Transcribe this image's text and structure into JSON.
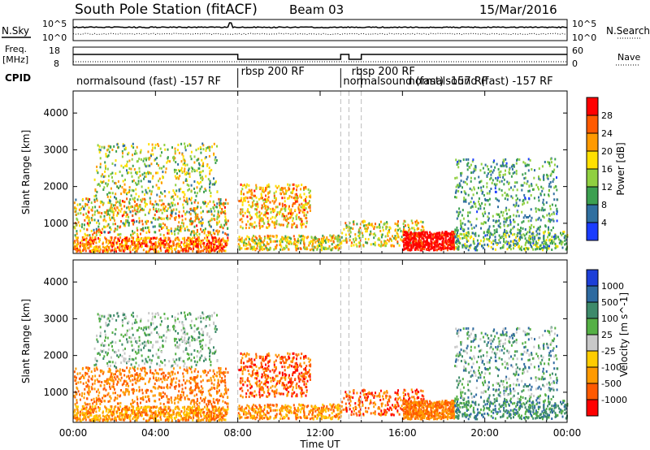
{
  "header": {
    "station": "South Pole Station (fitACF)",
    "beam": "Beam 03",
    "date": "15/Mar/2016"
  },
  "panels": {
    "nsky_label": "N.Sky",
    "nsky_top": "10^5",
    "nsky_bottom": "10^0",
    "nsearch_label": "N.Search",
    "nsearch_top": "10^5",
    "nsearch_bottom": "10^0",
    "freq_label_1": "Freq.",
    "freq_label_2": "[MHz]",
    "freq_top": "18",
    "freq_bottom": "8",
    "nave_label": "Nave",
    "nave_top": "60",
    "nave_bottom": "0",
    "cpid_label": "CPID",
    "cpid_segments": [
      "normalsound (fast) -157 RF",
      "rbsp 200 RF",
      "normalsound (fast) -157 RF",
      "rbsp 200 RF",
      "normalsound (fast) -157 RF"
    ]
  },
  "power_colorbar": {
    "label": "Power [dB]",
    "ticks": [
      "28",
      "24",
      "20",
      "16",
      "12",
      "8",
      "4"
    ],
    "colors": [
      "#ff0000",
      "#ff5a00",
      "#ff9a00",
      "#ffe000",
      "#90d040",
      "#3ca050",
      "#2f6fa0",
      "#1a3cff"
    ]
  },
  "velocity_colorbar": {
    "label": "Velocity [m s^-1]",
    "ticks": [
      "1000",
      "500",
      "100",
      "25",
      "-25",
      "-100",
      "-500",
      "-1000"
    ],
    "colors": [
      "#1d3fd8",
      "#2e6aa0",
      "#3d8a6a",
      "#55b045",
      "#c8c8c8",
      "#ffcc00",
      "#ff9a00",
      "#ff5a00",
      "#ff0000"
    ]
  },
  "chart_data": {
    "type": "heatmap",
    "ylabel": "Slant Range [km]",
    "xlabel": "Time UT",
    "x_ticks": [
      "00:00",
      "04:00",
      "08:00",
      "12:00",
      "16:00",
      "20:00",
      "00:00"
    ],
    "y_ticks": [
      "1000",
      "2000",
      "3000",
      "4000"
    ],
    "xlim_hours": [
      0,
      24
    ],
    "ylim_km": [
      180,
      4600
    ],
    "mode_change_hours": [
      8.0,
      13.0,
      13.4,
      14.0
    ]
  }
}
